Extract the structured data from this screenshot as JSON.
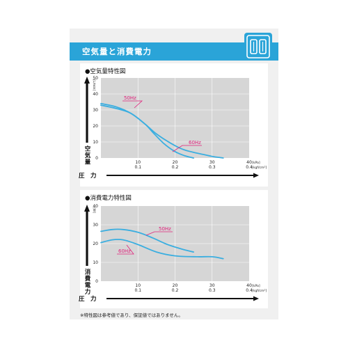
{
  "header": {
    "title": "空気量と消費電力"
  },
  "logo": {
    "icon": "brand-logo-icon",
    "color": "#2aa4d8"
  },
  "footnote": "※特性図は参考値であり、保証値ではありません。",
  "colors": {
    "curve": "#3aaee0",
    "label": "#e0207a",
    "plot_bg": "#d6d6d6",
    "header": "#2aa4d8"
  },
  "chart_data": [
    {
      "type": "line",
      "title": "●空気量特性図",
      "ylabel": "空気量",
      "yunit": "[L/min]",
      "xlabel": "圧　力",
      "xlim": [
        0,
        40
      ],
      "ylim": [
        0,
        50
      ],
      "x_ticks_kpa": [
        "10",
        "20",
        "30",
        "40"
      ],
      "x_ticks_kgf": [
        "0.1",
        "0.2",
        "0.3",
        "0.4"
      ],
      "y_ticks": [
        "0",
        "10",
        "20",
        "30",
        "40",
        "50"
      ],
      "x_unit_kpa": "[kPa]",
      "x_unit_kgf": "[kgf/cm²]",
      "grid": true,
      "series": [
        {
          "name": "50Hz",
          "x": [
            0,
            4,
            8,
            12,
            14,
            17,
            20,
            22.5,
            25
          ],
          "y": [
            34,
            32,
            28,
            21,
            16,
            9,
            4,
            1.5,
            0
          ]
        },
        {
          "name": "60Hz",
          "x": [
            0,
            4,
            8,
            12,
            15,
            19,
            22,
            25,
            28,
            30,
            33
          ],
          "y": [
            33,
            31,
            28,
            21,
            15,
            9,
            5.5,
            3.5,
            2,
            1,
            0
          ]
        }
      ]
    },
    {
      "type": "line",
      "title": "●消費電力特性図",
      "ylabel": "消費電力",
      "yunit": "[W]",
      "xlabel": "圧　力",
      "xlim": [
        0,
        40
      ],
      "ylim": [
        0,
        40
      ],
      "x_ticks_kpa": [
        "10",
        "20",
        "30",
        "40"
      ],
      "x_ticks_kgf": [
        "0.1",
        "0.2",
        "0.3",
        "0.4"
      ],
      "y_ticks": [
        "0",
        "10",
        "20",
        "30",
        "40"
      ],
      "x_unit_kpa": "[kPa]",
      "x_unit_kgf": "[kgf/cm²]",
      "grid": true,
      "series": [
        {
          "name": "50Hz",
          "x": [
            0,
            3,
            6,
            10,
            14,
            18,
            22,
            25
          ],
          "y": [
            26.5,
            27.5,
            27.5,
            26,
            23,
            19.5,
            17,
            15.5
          ]
        },
        {
          "name": "60Hz",
          "x": [
            0,
            3,
            6,
            10,
            15,
            20,
            26,
            30,
            33
          ],
          "y": [
            20.5,
            22,
            22,
            19.5,
            15.5,
            13.5,
            13,
            13,
            12
          ]
        }
      ]
    }
  ]
}
